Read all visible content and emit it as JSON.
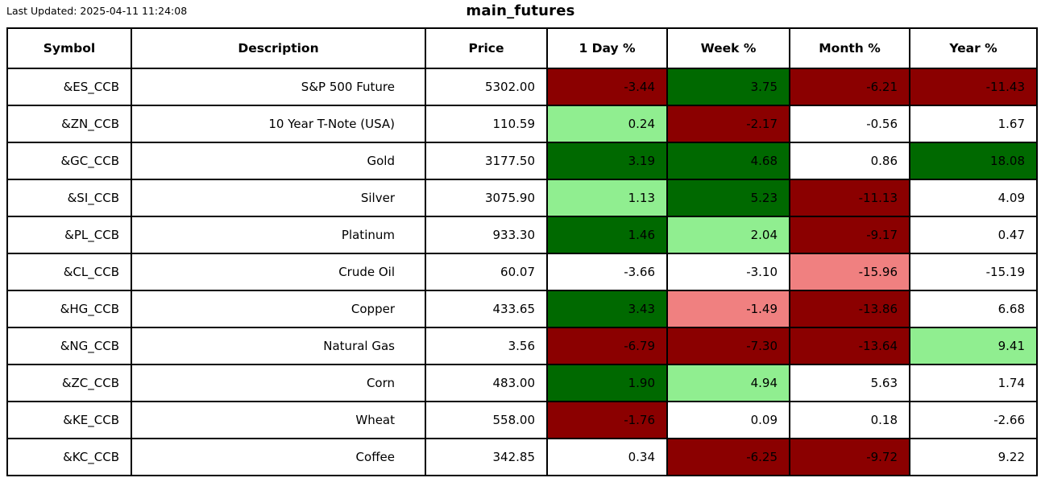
{
  "header": {
    "last_updated": "Last Updated: 2025-04-11 11:24:08",
    "title": "main_futures"
  },
  "palette": {
    "dark_red": "#8B0000",
    "dark_green": "#006900",
    "light_green": "#90EE90",
    "light_red": "#F08080",
    "none": "#FFFFFF"
  },
  "chart_data": {
    "type": "table",
    "title": "main_futures",
    "columns": [
      "Symbol",
      "Description",
      "Price",
      "1 Day %",
      "Week %",
      "Month %",
      "Year %"
    ],
    "rows": [
      {
        "symbol": "&ES_CCB",
        "description": "S&P 500 Future",
        "price": "5302.00",
        "changes": [
          {
            "label": "-3.44",
            "bg": "dark_red"
          },
          {
            "label": "3.75",
            "bg": "dark_green"
          },
          {
            "label": "-6.21",
            "bg": "dark_red"
          },
          {
            "label": "-11.43",
            "bg": "dark_red"
          }
        ]
      },
      {
        "symbol": "&ZN_CCB",
        "description": "10 Year T-Note (USA)",
        "price": "110.59",
        "changes": [
          {
            "label": "0.24",
            "bg": "light_green"
          },
          {
            "label": "-2.17",
            "bg": "dark_red"
          },
          {
            "label": "-0.56",
            "bg": "none"
          },
          {
            "label": "1.67",
            "bg": "none"
          }
        ]
      },
      {
        "symbol": "&GC_CCB",
        "description": "Gold",
        "price": "3177.50",
        "changes": [
          {
            "label": "3.19",
            "bg": "dark_green"
          },
          {
            "label": "4.68",
            "bg": "dark_green"
          },
          {
            "label": "0.86",
            "bg": "none"
          },
          {
            "label": "18.08",
            "bg": "dark_green"
          }
        ]
      },
      {
        "symbol": "&SI_CCB",
        "description": "Silver",
        "price": "3075.90",
        "changes": [
          {
            "label": "1.13",
            "bg": "light_green"
          },
          {
            "label": "5.23",
            "bg": "dark_green"
          },
          {
            "label": "-11.13",
            "bg": "dark_red"
          },
          {
            "label": "4.09",
            "bg": "none"
          }
        ]
      },
      {
        "symbol": "&PL_CCB",
        "description": "Platinum",
        "price": "933.30",
        "changes": [
          {
            "label": "1.46",
            "bg": "dark_green"
          },
          {
            "label": "2.04",
            "bg": "light_green"
          },
          {
            "label": "-9.17",
            "bg": "dark_red"
          },
          {
            "label": "0.47",
            "bg": "none"
          }
        ]
      },
      {
        "symbol": "&CL_CCB",
        "description": "Crude Oil",
        "price": "60.07",
        "changes": [
          {
            "label": "-3.66",
            "bg": "none"
          },
          {
            "label": "-3.10",
            "bg": "none"
          },
          {
            "label": "-15.96",
            "bg": "light_red"
          },
          {
            "label": "-15.19",
            "bg": "none"
          }
        ]
      },
      {
        "symbol": "&HG_CCB",
        "description": "Copper",
        "price": "433.65",
        "changes": [
          {
            "label": "3.43",
            "bg": "dark_green"
          },
          {
            "label": "-1.49",
            "bg": "light_red"
          },
          {
            "label": "-13.86",
            "bg": "dark_red"
          },
          {
            "label": "6.68",
            "bg": "none"
          }
        ]
      },
      {
        "symbol": "&NG_CCB",
        "description": "Natural Gas",
        "price": "3.56",
        "changes": [
          {
            "label": "-6.79",
            "bg": "dark_red"
          },
          {
            "label": "-7.30",
            "bg": "dark_red"
          },
          {
            "label": "-13.64",
            "bg": "dark_red"
          },
          {
            "label": "9.41",
            "bg": "light_green"
          }
        ]
      },
      {
        "symbol": "&ZC_CCB",
        "description": "Corn",
        "price": "483.00",
        "changes": [
          {
            "label": "1.90",
            "bg": "dark_green"
          },
          {
            "label": "4.94",
            "bg": "light_green"
          },
          {
            "label": "5.63",
            "bg": "none"
          },
          {
            "label": "1.74",
            "bg": "none"
          }
        ]
      },
      {
        "symbol": "&KE_CCB",
        "description": "Wheat",
        "price": "558.00",
        "changes": [
          {
            "label": "-1.76",
            "bg": "dark_red"
          },
          {
            "label": "0.09",
            "bg": "none"
          },
          {
            "label": "0.18",
            "bg": "none"
          },
          {
            "label": "-2.66",
            "bg": "none"
          }
        ]
      },
      {
        "symbol": "&KC_CCB",
        "description": "Coffee",
        "price": "342.85",
        "changes": [
          {
            "label": "0.34",
            "bg": "none"
          },
          {
            "label": "-6.25",
            "bg": "dark_red"
          },
          {
            "label": "-9.72",
            "bg": "dark_red"
          },
          {
            "label": "9.22",
            "bg": "none"
          }
        ]
      }
    ]
  }
}
